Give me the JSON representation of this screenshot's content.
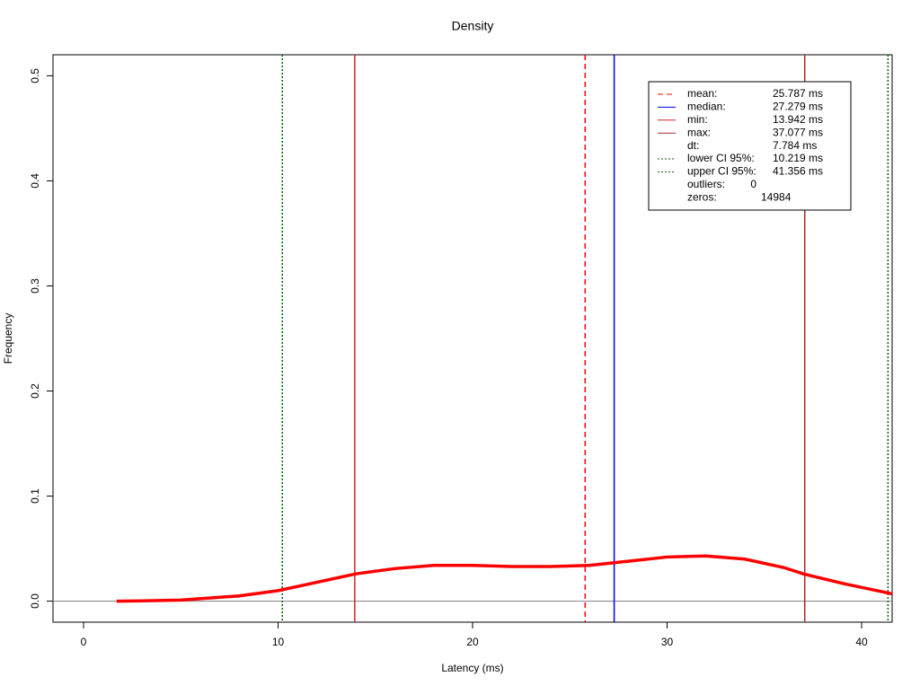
{
  "chart_data": {
    "type": "line",
    "title": "Density",
    "x_label": "Latency (ms)",
    "y_label": "Frequency",
    "xlim": [
      -1.57,
      41.57
    ],
    "ylim": [
      -0.02,
      0.52
    ],
    "xticks": [
      0,
      10,
      20,
      30,
      40
    ],
    "yticks": [
      {
        "value": 0,
        "label": "0.0"
      },
      0.1,
      0.2,
      0.3,
      0.4,
      0.5
    ],
    "baseline_color": "#808080",
    "series": [
      {
        "color": "#ff0000",
        "x": [
          1.7,
          3,
          5,
          8,
          10,
          12,
          14,
          16,
          18,
          20,
          22,
          24,
          26,
          28,
          30,
          32,
          34,
          36,
          37,
          39,
          41.57
        ],
        "values": [
          0.0,
          0.0003,
          0.001,
          0.005,
          0.01,
          0.018,
          0.026,
          0.031,
          0.034,
          0.034,
          0.033,
          0.033,
          0.034,
          0.038,
          0.042,
          0.043,
          0.04,
          0.032,
          0.026,
          0.017,
          0.007
        ]
      }
    ],
    "legend": [
      {
        "name": "mean:",
        "value": 25.787,
        "value_label": "25.787 ms",
        "color": "#ff0000",
        "dash": "dashed"
      },
      {
        "name": "median:",
        "value": 27.279,
        "value_label": "27.279 ms",
        "color": "#0000ff",
        "dash": "solid"
      },
      {
        "name": "min:",
        "value": 13.942,
        "value_label": "13.942 ms",
        "color": "#cd2626",
        "dash": "solid"
      },
      {
        "name": "max:",
        "value": 37.077,
        "value_label": "37.077 ms",
        "color": "#a52a2a",
        "dash": "solid"
      },
      {
        "name": "dt:",
        "value_label": "7.784 ms"
      },
      {
        "name": "lower CI 95%:",
        "value": 10.219,
        "value_label": "10.219 ms",
        "color": "#006400",
        "dash": "dotted"
      },
      {
        "name": "upper CI 95%:",
        "value": 41.356,
        "value_label": "41.356 ms",
        "color": "#006400",
        "dash": "dotted"
      },
      {
        "name": "outliers:",
        "value_label": "0"
      },
      {
        "name": "zeros:",
        "value_label": "14984"
      }
    ]
  }
}
